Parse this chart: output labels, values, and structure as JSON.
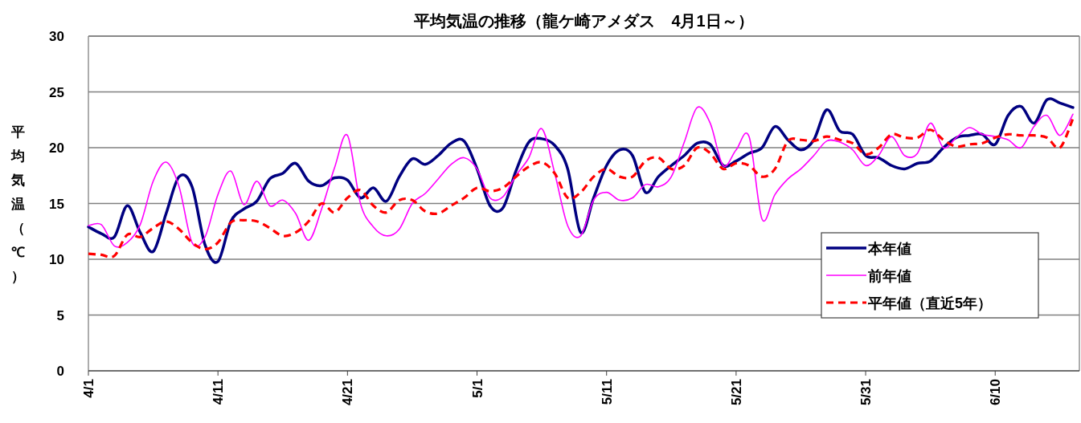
{
  "chart_data": {
    "type": "line",
    "title": "平均気温の推移（龍ケ崎アメダス　4月1日～）",
    "ylabel": "平均気温（℃）",
    "categories": [
      "4/1",
      null,
      null,
      null,
      null,
      null,
      null,
      null,
      null,
      null,
      "4/11",
      null,
      null,
      null,
      null,
      null,
      null,
      null,
      null,
      null,
      "4/21",
      null,
      null,
      null,
      null,
      null,
      null,
      null,
      null,
      null,
      "5/1",
      null,
      null,
      null,
      null,
      null,
      null,
      null,
      null,
      null,
      "5/11",
      null,
      null,
      null,
      null,
      null,
      null,
      null,
      null,
      null,
      "5/21",
      null,
      null,
      null,
      null,
      null,
      null,
      null,
      null,
      null,
      "5/31",
      null,
      null,
      null,
      null,
      null,
      null,
      null,
      null,
      null,
      "6/10",
      null,
      null,
      null,
      null,
      null,
      null
    ],
    "ylim": [
      0,
      30
    ],
    "yticks": [
      0,
      5,
      10,
      15,
      20,
      25,
      30
    ],
    "grid": "y",
    "legend": "bottom right",
    "series": [
      {
        "name": "本年値",
        "color": "#000080",
        "line_style": "solid",
        "values": [
          12.9,
          12.3,
          12.0,
          14.8,
          12.4,
          10.7,
          14.1,
          17.4,
          16.5,
          11.3,
          9.8,
          13.4,
          14.5,
          15.2,
          17.2,
          17.7,
          18.6,
          17.0,
          16.6,
          17.3,
          17.1,
          15.5,
          16.4,
          15.2,
          17.4,
          19.0,
          18.5,
          19.3,
          20.4,
          20.6,
          18.1,
          14.8,
          14.6,
          17.9,
          20.5,
          20.8,
          20.2,
          18.1,
          12.4,
          15.5,
          18.4,
          19.8,
          19.3,
          16.0,
          17.4,
          18.4,
          19.3,
          20.4,
          20.3,
          18.4,
          18.8,
          19.5,
          20.0,
          21.9,
          20.7,
          19.8,
          20.7,
          23.4,
          21.5,
          21.2,
          19.3,
          19.1,
          18.4,
          18.1,
          18.6,
          18.8,
          20.0,
          20.9,
          21.1,
          21.2,
          20.3,
          22.9,
          23.7,
          22.2,
          24.3,
          24.0,
          23.6
        ]
      },
      {
        "name": "前年値",
        "color": "#ff00ff",
        "line_style": "solid",
        "values": [
          13.0,
          13.1,
          11.2,
          11.5,
          13.1,
          17.0,
          18.7,
          16.5,
          11.5,
          12.0,
          15.8,
          17.9,
          14.9,
          17.0,
          14.8,
          15.3,
          14.1,
          11.7,
          14.5,
          18.2,
          21.1,
          15.0,
          12.9,
          12.1,
          12.7,
          15.0,
          15.9,
          17.2,
          18.5,
          19.1,
          18.1,
          15.5,
          15.6,
          17.5,
          19.1,
          21.7,
          17.7,
          13.0,
          12.1,
          15.3,
          16.0,
          15.3,
          15.5,
          16.7,
          16.5,
          17.4,
          20.5,
          23.6,
          22.2,
          18.4,
          19.8,
          21.0,
          13.6,
          15.8,
          17.2,
          18.1,
          19.3,
          20.6,
          20.5,
          19.8,
          18.4,
          19.3,
          21.0,
          19.3,
          19.5,
          22.2,
          20.0,
          20.9,
          21.8,
          21.2,
          21.0,
          20.7,
          20.0,
          21.9,
          22.9,
          21.1,
          23.0
        ]
      },
      {
        "name": "平年値（直近5年）",
        "color": "#ff0000",
        "line_style": "dashed",
        "values": [
          10.5,
          10.4,
          10.3,
          12.2,
          12.0,
          12.8,
          13.4,
          12.7,
          11.5,
          10.9,
          11.5,
          13.3,
          13.5,
          13.4,
          12.8,
          12.1,
          12.4,
          13.4,
          15.0,
          14.2,
          15.5,
          16.2,
          14.8,
          14.2,
          15.3,
          15.3,
          14.3,
          14.1,
          14.8,
          15.5,
          16.4,
          16.1,
          16.4,
          17.4,
          18.3,
          18.7,
          17.7,
          15.5,
          16.0,
          17.4,
          18.1,
          17.4,
          17.4,
          18.8,
          19.1,
          18.1,
          18.4,
          20.0,
          19.5,
          18.1,
          18.6,
          18.4,
          17.4,
          18.1,
          20.6,
          20.7,
          20.6,
          21.0,
          20.7,
          20.4,
          19.4,
          20.0,
          21.2,
          20.9,
          20.9,
          21.6,
          20.7,
          20.1,
          20.3,
          20.4,
          20.9,
          21.2,
          21.1,
          21.1,
          20.9,
          20.0,
          22.6
        ]
      }
    ]
  }
}
